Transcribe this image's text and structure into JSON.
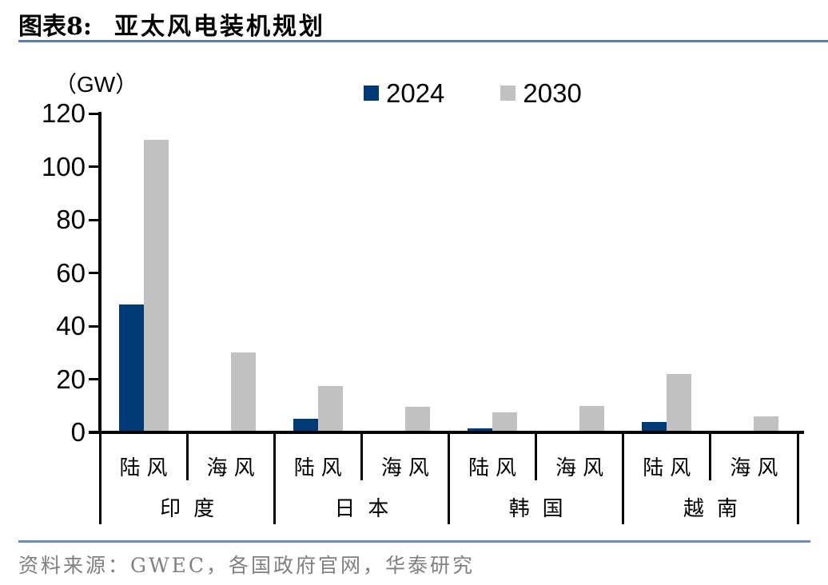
{
  "figure": {
    "label": "图表8:",
    "title": "亚太风电装机规划"
  },
  "chart_data": {
    "type": "bar",
    "title": "亚太风电装机规划",
    "unit_label": "（GW）",
    "ylim": [
      0,
      120
    ],
    "yticks": [
      0,
      20,
      40,
      60,
      80,
      100,
      120
    ],
    "grid": false,
    "legend_position": "top",
    "groups": [
      {
        "label": "印度",
        "categories": [
          "陆风",
          "海风"
        ]
      },
      {
        "label": "日本",
        "categories": [
          "陆风",
          "海风"
        ]
      },
      {
        "label": "韩国",
        "categories": [
          "陆风",
          "海风"
        ]
      },
      {
        "label": "越南",
        "categories": [
          "陆风",
          "海风"
        ]
      }
    ],
    "series": [
      {
        "name": "2024",
        "color": "#003a76",
        "values": [
          48,
          0,
          5,
          0.6,
          1.5,
          0.7,
          4,
          0.6
        ]
      },
      {
        "name": "2030",
        "color": "#c1c1c1",
        "values": [
          110,
          30,
          17.5,
          9.5,
          7.5,
          10,
          22,
          6
        ]
      }
    ]
  },
  "colors": {
    "title_rule": "#5b7fab",
    "source_rule": "#6f8cb6",
    "source_text": "#7f7f7f",
    "axis": "#000000"
  },
  "source": {
    "text": "资料来源：GWEC，各国政府官网，华泰研究"
  }
}
